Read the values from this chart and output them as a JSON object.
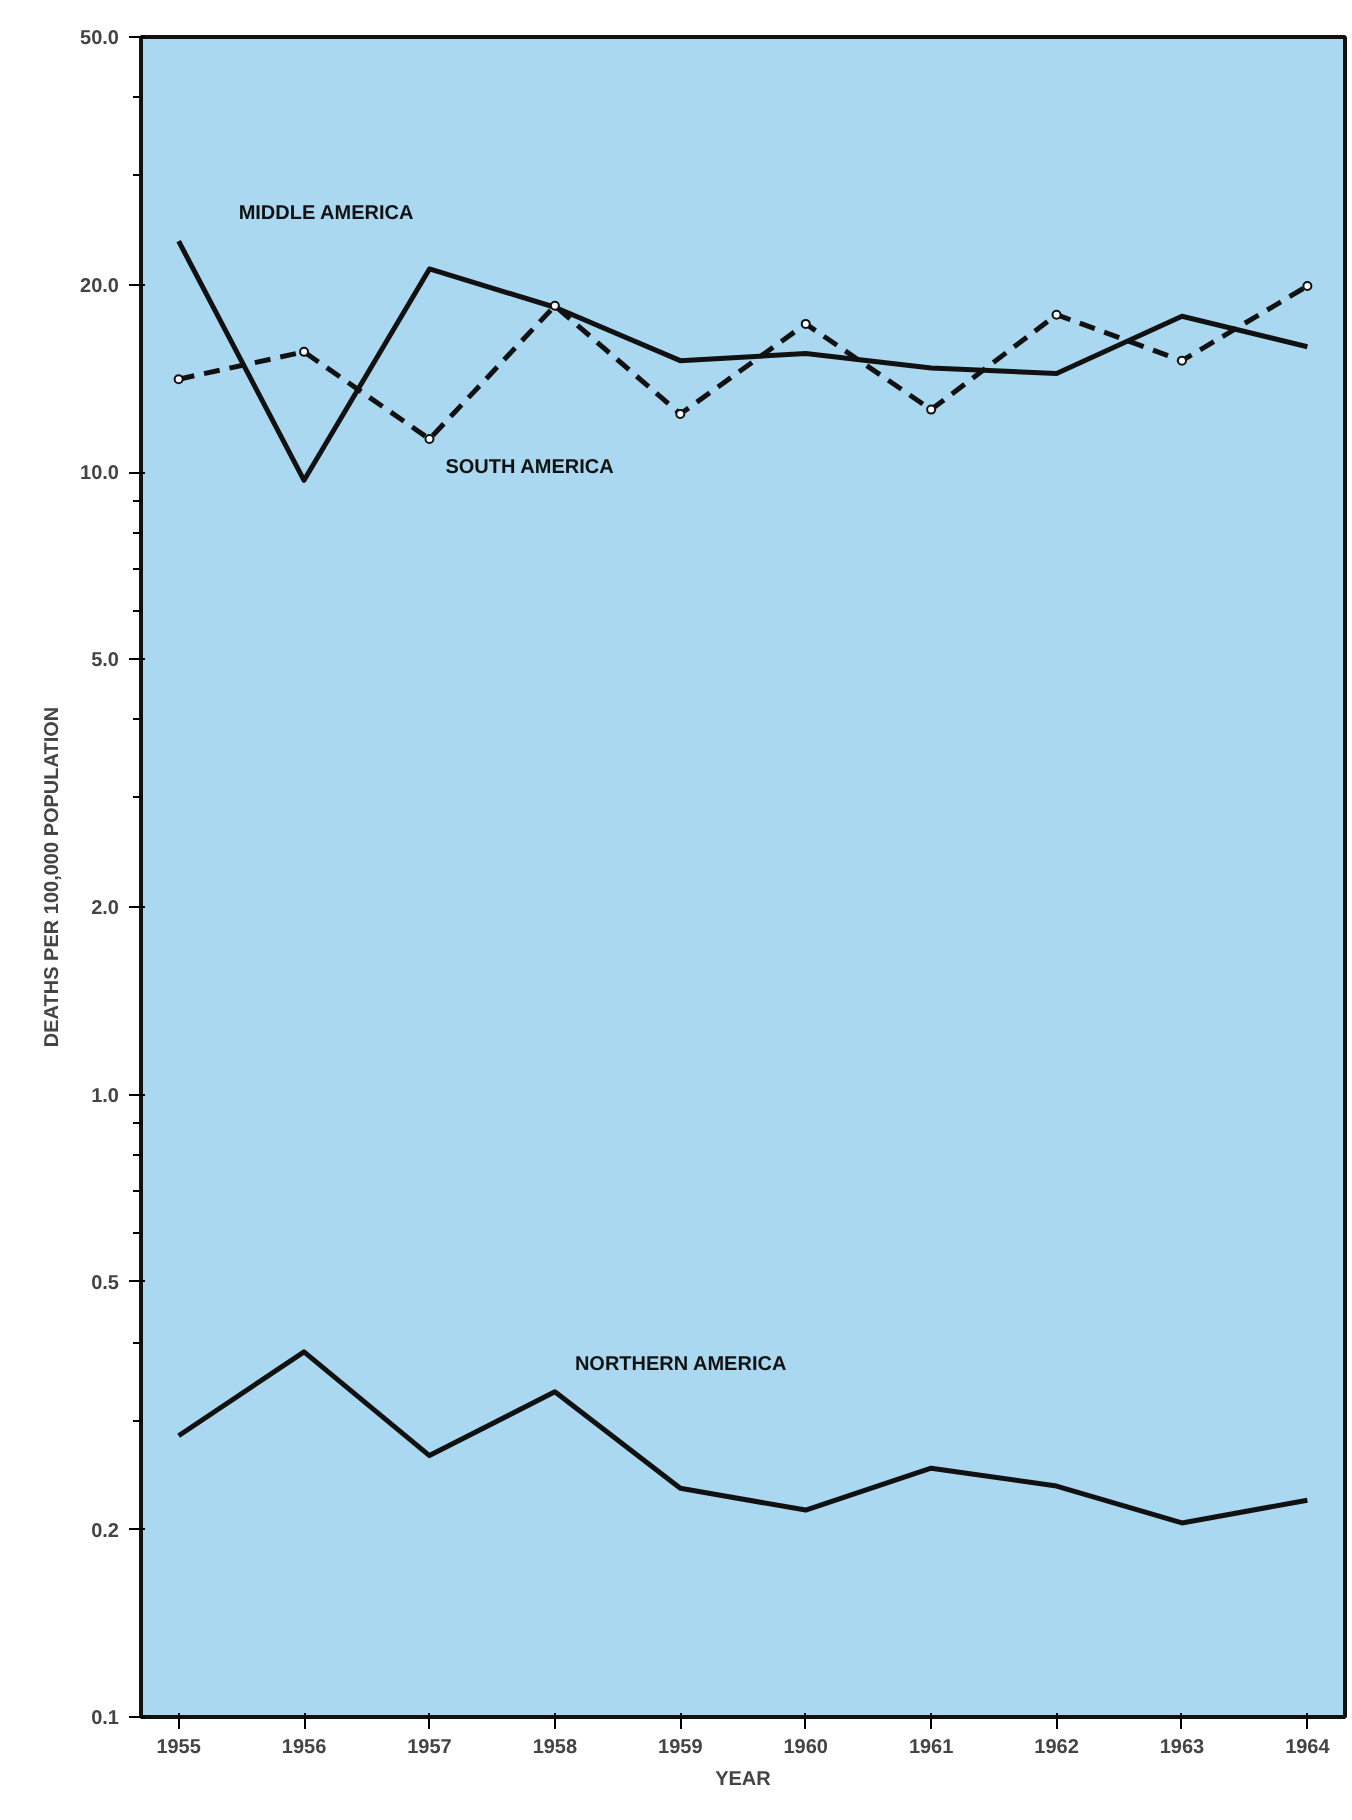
{
  "chart_data": {
    "type": "line",
    "xlabel": "YEAR",
    "ylabel": "DEATHS PER 100,000 POPULATION",
    "x": [
      1955,
      1956,
      1957,
      1958,
      1959,
      1960,
      1961,
      1962,
      1963,
      1964
    ],
    "series": [
      {
        "name": "MIDDLE AMERICA",
        "color": "#111111",
        "line_style": "solid",
        "marker": "none",
        "values": [
          23.5,
          9.7,
          21.2,
          18.4,
          15.1,
          15.5,
          14.7,
          14.4,
          17.8,
          15.9
        ]
      },
      {
        "name": "SOUTH AMERICA",
        "color": "#111111",
        "line_style": "dashed",
        "marker": "circle",
        "values": [
          14.1,
          15.6,
          11.3,
          18.5,
          12.4,
          17.3,
          12.6,
          17.9,
          15.1,
          19.9
        ]
      },
      {
        "name": "NORTHERN AMERICA",
        "color": "#111111",
        "line_style": "solid",
        "marker": "none",
        "values": [
          0.283,
          0.386,
          0.263,
          0.333,
          0.233,
          0.215,
          0.251,
          0.235,
          0.205,
          0.223
        ]
      }
    ],
    "log": "y",
    "ylim": [
      0.1,
      50
    ],
    "yticks": [
      {
        "value": 0.1,
        "label": "0.1"
      },
      {
        "value": 0.2,
        "label": "0.2"
      },
      {
        "value": 0.5,
        "label": "0.5"
      },
      {
        "value": 1,
        "label": "1.0"
      },
      {
        "value": 2,
        "label": "2.0"
      },
      {
        "value": 5,
        "label": "5.0"
      },
      {
        "value": 10,
        "label": "10.0"
      },
      {
        "value": 20,
        "label": "20.0"
      },
      {
        "value": 50,
        "label": "50.0"
      }
    ],
    "xlim": [
      1954.7,
      1964.3
    ],
    "xticks": [
      1955,
      1956,
      1957,
      1958,
      1959,
      1960,
      1961,
      1962,
      1963,
      1964
    ],
    "grid": false
  }
}
